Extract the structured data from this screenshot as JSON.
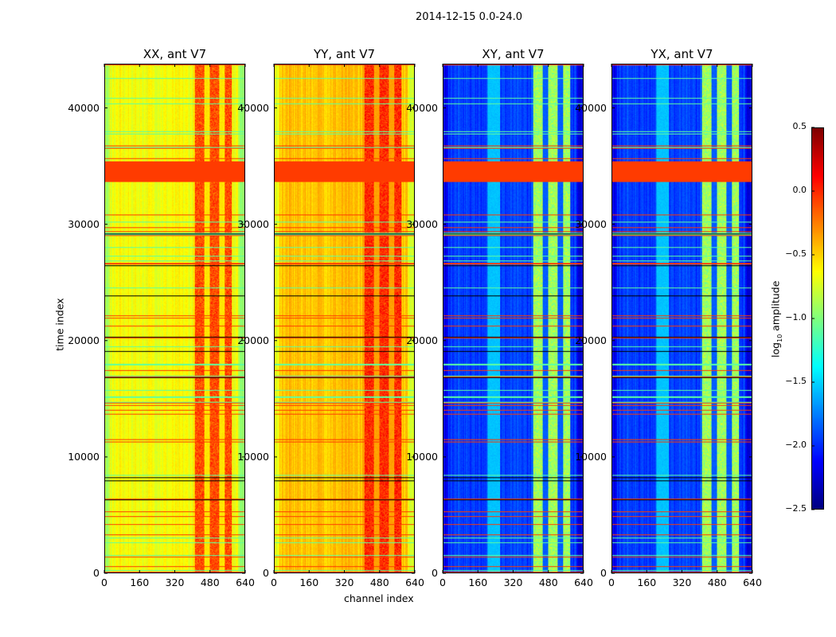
{
  "chart_data": {
    "type": "heatmap",
    "title": "2014-12-15 0.0-24.0",
    "xlabel": "channel index",
    "ylabel": "time index",
    "xlim": [
      0,
      640
    ],
    "ylim": [
      0,
      43800
    ],
    "x_ticks": [
      "0",
      "160",
      "320",
      "480",
      "640"
    ],
    "y_ticks": [
      "0",
      "10000",
      "20000",
      "30000",
      "40000"
    ],
    "y_tick_values": [
      0,
      10000,
      20000,
      30000,
      40000
    ],
    "x_tick_values": [
      0,
      160,
      320,
      480,
      640
    ],
    "panels": [
      {
        "title": "XX, ant V7",
        "base": -0.65,
        "hot_channels": [
          400,
          580
        ],
        "hot_value": -0.1,
        "cool_channels": [],
        "cool_value": -0.65
      },
      {
        "title": "YY, ant V7",
        "base": -0.45,
        "hot_channels": [
          400,
          580
        ],
        "hot_value": 0.0,
        "cool_channels": [],
        "cool_value": -0.45
      },
      {
        "title": "XY, ant V7",
        "base": -1.95,
        "hot_channels": [
          400,
          580
        ],
        "hot_value": -0.9,
        "cool_channels": [
          200,
          260
        ],
        "cool_value": -1.55
      },
      {
        "title": "YX, ant V7",
        "base": -1.95,
        "hot_channels": [
          400,
          580
        ],
        "hot_value": -0.9,
        "cool_channels": [
          200,
          260
        ],
        "cool_value": -1.55
      }
    ],
    "flagged_time_range": [
      33700,
      35400
    ],
    "flagged_value": -0.05,
    "colorbar": {
      "label": "log10 amplitude",
      "colormap": "jet",
      "range": [
        -2.5,
        0.5
      ],
      "ticks": [
        "0.5",
        "0.0",
        "−0.5",
        "−1.0",
        "−1.5",
        "−2.0",
        "−2.5"
      ],
      "tick_values": [
        0.5,
        0.0,
        -0.5,
        -1.0,
        -1.5,
        -2.0,
        -2.5
      ]
    }
  }
}
